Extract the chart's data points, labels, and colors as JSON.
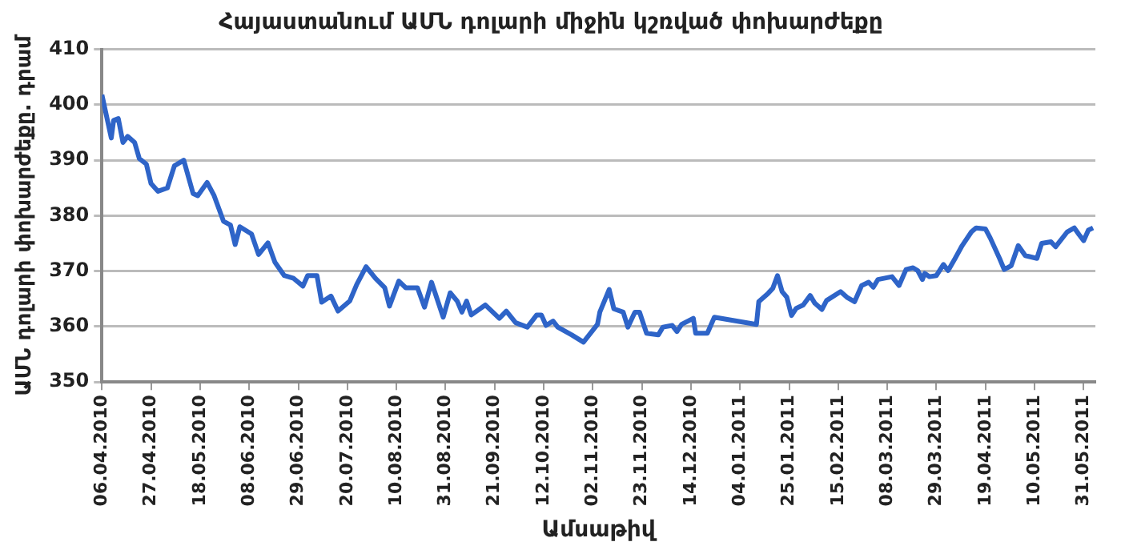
{
  "chart_data": {
    "type": "line",
    "title": "Հայաստանում ԱՄՆ դոլարի միջին կշռված փոխարժեքը",
    "xlabel": "Ամսաթիվ",
    "ylabel": "ԱՄՆ դոլարի փոխարժեքը. դրամ",
    "x": [
      "2010-04-06",
      "2010-04-10",
      "2010-04-11",
      "2010-04-13",
      "2010-04-15",
      "2010-04-17",
      "2010-04-20",
      "2010-04-22",
      "2010-04-25",
      "2010-04-27",
      "2010-04-30",
      "2010-05-04",
      "2010-05-07",
      "2010-05-11",
      "2010-05-15",
      "2010-05-17",
      "2010-05-21",
      "2010-05-24",
      "2010-05-28",
      "2010-05-31",
      "2010-06-02",
      "2010-06-04",
      "2010-06-09",
      "2010-06-12",
      "2010-06-16",
      "2010-06-19",
      "2010-06-23",
      "2010-06-27",
      "2010-07-01",
      "2010-07-03",
      "2010-07-07",
      "2010-07-09",
      "2010-07-13",
      "2010-07-16",
      "2010-07-21",
      "2010-07-24",
      "2010-07-28",
      "2010-08-01",
      "2010-08-05",
      "2010-08-07",
      "2010-08-11",
      "2010-08-14",
      "2010-08-19",
      "2010-08-22",
      "2010-08-25",
      "2010-08-30",
      "2010-09-02",
      "2010-09-05",
      "2010-09-07",
      "2010-09-09",
      "2010-09-11",
      "2010-09-17",
      "2010-09-23",
      "2010-09-26",
      "2010-09-30",
      "2010-10-05",
      "2010-10-09",
      "2010-10-11",
      "2010-10-13",
      "2010-10-16",
      "2010-10-18",
      "2010-10-24",
      "2010-10-29",
      "2010-11-04",
      "2010-11-05",
      "2010-11-09",
      "2010-11-11",
      "2010-11-15",
      "2010-11-17",
      "2010-11-20",
      "2010-11-22",
      "2010-11-25",
      "2010-11-30",
      "2010-12-02",
      "2010-12-06",
      "2010-12-08",
      "2010-12-10",
      "2010-12-15",
      "2010-12-16",
      "2010-12-21",
      "2010-12-24",
      "2011-01-11",
      "2011-01-12",
      "2011-01-16",
      "2011-01-18",
      "2011-01-20",
      "2011-01-22",
      "2011-01-24",
      "2011-01-26",
      "2011-01-28",
      "2011-01-31",
      "2011-02-03",
      "2011-02-05",
      "2011-02-08",
      "2011-02-10",
      "2011-02-16",
      "2011-02-19",
      "2011-02-22",
      "2011-02-25",
      "2011-02-28",
      "2011-03-02",
      "2011-03-04",
      "2011-03-10",
      "2011-03-13",
      "2011-03-16",
      "2011-03-19",
      "2011-03-21",
      "2011-03-23",
      "2011-03-24",
      "2011-03-26",
      "2011-03-29",
      "2011-04-01",
      "2011-04-03",
      "2011-04-06",
      "2011-04-09",
      "2011-04-13",
      "2011-04-15",
      "2011-04-19",
      "2011-04-21",
      "2011-04-25",
      "2011-04-27",
      "2011-04-30",
      "2011-05-03",
      "2011-05-06",
      "2011-05-11",
      "2011-05-13",
      "2011-05-17",
      "2011-05-19",
      "2011-05-24",
      "2011-05-27",
      "2011-05-29",
      "2011-05-31",
      "2011-06-02",
      "2011-06-04"
    ],
    "series": [
      {
        "color": "#2e64c8",
        "values": [
          401.8,
          394,
          397.2,
          397.5,
          393.2,
          394.3,
          393.2,
          390.3,
          389.3,
          385.8,
          384.4,
          385,
          389,
          390,
          384,
          383.6,
          386,
          383.6,
          379,
          378.3,
          374.8,
          378,
          376.7,
          373,
          375.1,
          371.6,
          369.2,
          368.7,
          367.3,
          369.2,
          369.2,
          364.4,
          365.5,
          362.8,
          364.6,
          367.6,
          370.8,
          368.7,
          367,
          363.7,
          368.2,
          367,
          367,
          363.5,
          368,
          361.7,
          366.1,
          364.6,
          362.6,
          364.6,
          362.1,
          363.9,
          361.5,
          362.8,
          360.7,
          359.9,
          362.1,
          362.1,
          360.2,
          361,
          359.9,
          358.5,
          357.2,
          360.4,
          362.6,
          366.7,
          363.2,
          362.6,
          359.9,
          362.6,
          362.6,
          358.8,
          358.5,
          359.9,
          360.2,
          359.1,
          360.4,
          361.5,
          358.8,
          358.8,
          361.7,
          360.4,
          364.5,
          366,
          366.9,
          369.2,
          366.3,
          365.3,
          362,
          363.3,
          363.9,
          365.6,
          364.2,
          363.1,
          364.7,
          366.3,
          365.2,
          364.5,
          367.4,
          368,
          367.1,
          368.5,
          369,
          367.4,
          370.3,
          370.6,
          370.1,
          368.5,
          369.6,
          369,
          369.2,
          371.2,
          370.1,
          372.3,
          374.6,
          377.1,
          377.8,
          377.6,
          376,
          372.3,
          370.3,
          371,
          374.6,
          372.8,
          372.3,
          375,
          375.3,
          374.4,
          377.1,
          377.8,
          376.6,
          375.5,
          377.4,
          377.8
        ]
      }
    ],
    "xlim": [
      "2010-04-06",
      "2011-06-05"
    ],
    "xticks": [
      {
        "value": "2010-04-06",
        "label": "06.04.2010"
      },
      {
        "value": "2010-04-27",
        "label": "27.04.2010"
      },
      {
        "value": "2010-05-18",
        "label": "18.05.2010"
      },
      {
        "value": "2010-06-08",
        "label": "08.06.2010"
      },
      {
        "value": "2010-06-29",
        "label": "29.06.2010"
      },
      {
        "value": "2010-07-20",
        "label": "20.07.2010"
      },
      {
        "value": "2010-08-10",
        "label": "10.08.2010"
      },
      {
        "value": "2010-08-31",
        "label": "31.08.2010"
      },
      {
        "value": "2010-09-21",
        "label": "21.09.2010"
      },
      {
        "value": "2010-10-12",
        "label": "12.10.2010"
      },
      {
        "value": "2010-11-02",
        "label": "02.11.2010"
      },
      {
        "value": "2010-11-23",
        "label": "23.11.2010"
      },
      {
        "value": "2010-12-14",
        "label": "14.12.2010"
      },
      {
        "value": "2011-01-04",
        "label": "04.01.2011"
      },
      {
        "value": "2011-01-25",
        "label": "25.01.2011"
      },
      {
        "value": "2011-02-15",
        "label": "15.02.2011"
      },
      {
        "value": "2011-03-08",
        "label": "08.03.2011"
      },
      {
        "value": "2011-03-29",
        "label": "29.03.2011"
      },
      {
        "value": "2011-04-19",
        "label": "19.04.2011"
      },
      {
        "value": "2011-05-10",
        "label": "10.05.2011"
      },
      {
        "value": "2011-05-31",
        "label": "31.05.2011"
      }
    ],
    "ylim": [
      350,
      410
    ],
    "yticks": [
      350,
      360,
      370,
      380,
      390,
      400,
      410
    ],
    "grid": "y",
    "legend": false,
    "marker": "none",
    "line_style": "solid"
  }
}
